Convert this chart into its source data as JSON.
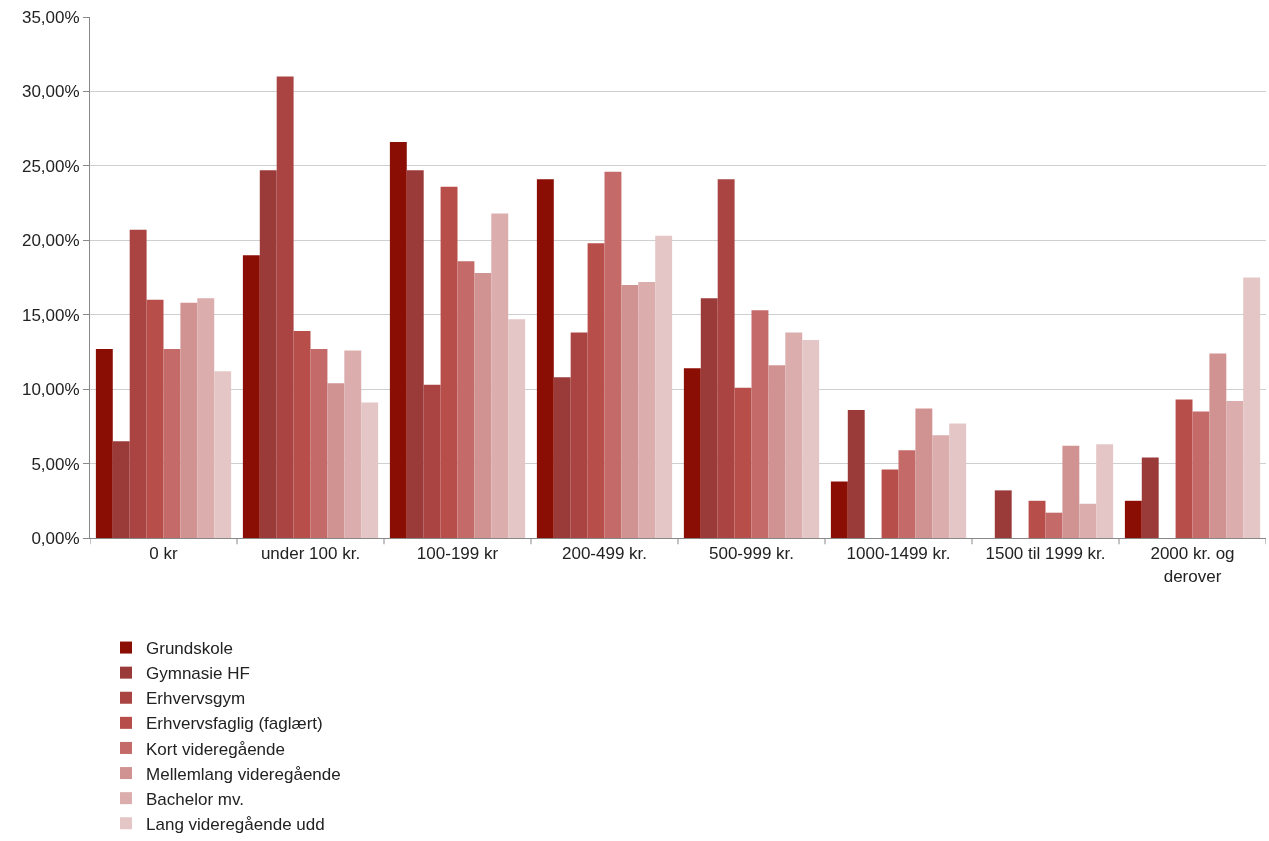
{
  "chart_data": {
    "type": "bar",
    "categories": [
      "0 kr",
      "under 100 kr.",
      "100-199 kr",
      "200-499 kr.",
      "500-999 kr.",
      "1000-1499 kr.",
      "1500 til 1999 kr.",
      "2000 kr. og derover"
    ],
    "series": [
      {
        "name": "Grundskole",
        "color": "#8b0e04",
        "values": [
          12.7,
          19.0,
          26.6,
          24.1,
          11.4,
          3.8,
          null,
          2.5
        ]
      },
      {
        "name": "Gymnasie HF",
        "color": "#9a3b3a",
        "values": [
          6.5,
          24.7,
          24.7,
          10.8,
          16.1,
          8.6,
          3.2,
          5.4
        ]
      },
      {
        "name": "Erhvervsgym",
        "color": "#a94442",
        "values": [
          20.7,
          31.0,
          10.3,
          13.8,
          24.1,
          null,
          null,
          null
        ]
      },
      {
        "name": "Erhvervsfaglig (faglært)",
        "color": "#b84e4a",
        "values": [
          16.0,
          13.9,
          23.6,
          19.8,
          10.1,
          4.6,
          2.5,
          9.3
        ]
      },
      {
        "name": "Kort videregående",
        "color": "#c46a68",
        "values": [
          12.7,
          12.7,
          18.6,
          24.6,
          15.3,
          5.9,
          1.7,
          8.5
        ]
      },
      {
        "name": "Mellemlang videregående",
        "color": "#d19392",
        "values": [
          15.8,
          10.4,
          17.8,
          17.0,
          11.6,
          8.7,
          6.2,
          12.4
        ]
      },
      {
        "name": "Bachelor mv.",
        "color": "#dbadad",
        "values": [
          16.1,
          12.6,
          21.8,
          17.2,
          13.8,
          6.9,
          2.3,
          9.2
        ]
      },
      {
        "name": "Lang videregående udd",
        "color": "#e5c6c6",
        "values": [
          11.2,
          9.1,
          14.7,
          20.3,
          13.3,
          7.7,
          6.3,
          17.5
        ]
      }
    ],
    "ylim": [
      0,
      35
    ],
    "yticks": [
      {
        "value": 0,
        "label": "0,00%"
      },
      {
        "value": 5,
        "label": "5,00%"
      },
      {
        "value": 10,
        "label": "10,00%"
      },
      {
        "value": 15,
        "label": "15,00%"
      },
      {
        "value": 20,
        "label": "20,00%"
      },
      {
        "value": 25,
        "label": "25,00%"
      },
      {
        "value": 30,
        "label": "30,00%"
      },
      {
        "value": 35,
        "label": "35,00%"
      }
    ],
    "grid": "y",
    "legend": "bottom"
  }
}
